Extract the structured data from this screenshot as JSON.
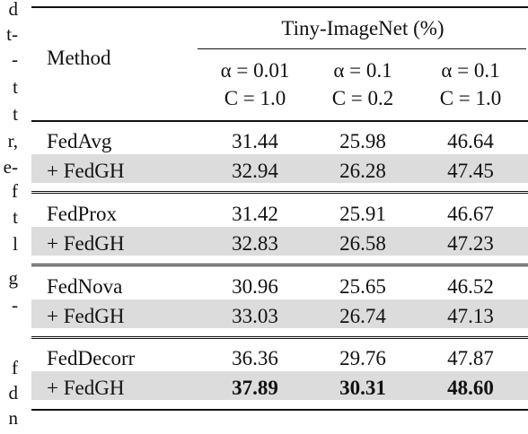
{
  "margin_fragments": [
    "d",
    "t-",
    "-",
    "t",
    "t",
    "r,",
    "e-",
    "f",
    "t",
    "l",
    "g",
    "-",
    "f",
    "d",
    "n"
  ],
  "table": {
    "group_header": "Tiny-ImageNet (%)",
    "method_header": "Method",
    "column_headers": [
      [
        "α = 0.01",
        "C = 1.0"
      ],
      [
        "α = 0.1",
        "C = 0.2"
      ],
      [
        "α = 0.1",
        "C = 1.0"
      ]
    ],
    "groups": [
      [
        [
          "FedAvg",
          "31.44",
          "25.98",
          "46.64"
        ],
        [
          "+ FedGH",
          "32.94",
          "26.28",
          "47.45"
        ]
      ],
      [
        [
          "FedProx",
          "31.42",
          "25.91",
          "46.67"
        ],
        [
          "+ FedGH",
          "32.83",
          "26.58",
          "47.23"
        ]
      ],
      [
        [
          "FedNova",
          "30.96",
          "25.65",
          "46.52"
        ],
        [
          "+ FedGH",
          "33.03",
          "26.74",
          "47.13"
        ]
      ],
      [
        [
          "FedDecorr",
          "36.36",
          "29.76",
          "47.87"
        ],
        [
          "+ FedGH",
          "37.89",
          "30.31",
          "48.60"
        ]
      ]
    ]
  }
}
